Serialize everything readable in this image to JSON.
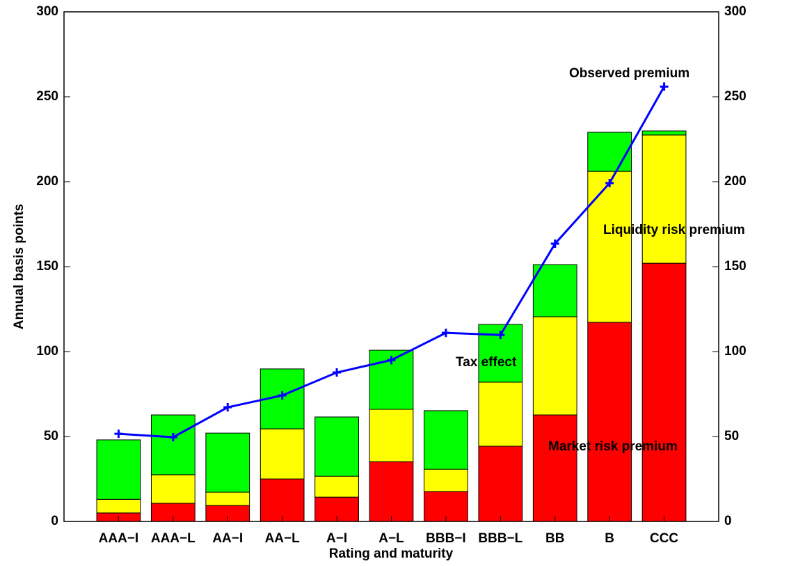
{
  "chart_data": {
    "type": "bar",
    "stacked": true,
    "xlabel": "Rating and maturity",
    "ylabel": "Annual basis points",
    "categories": [
      "AAA−I",
      "AAA−L",
      "AA−I",
      "AA−L",
      "A−I",
      "A−L",
      "BBB−I",
      "BBB−L",
      "BB",
      "B",
      "CCC"
    ],
    "series": [
      {
        "name": "Market risk premium",
        "type": "bar",
        "color": "#ff0000",
        "values": [
          5,
          10.7,
          9.4,
          25,
          14.3,
          35.2,
          17.6,
          44.3,
          62.7,
          117.2,
          152
        ]
      },
      {
        "name": "Liquidity risk premium",
        "type": "bar",
        "color": "#ffff00",
        "values": [
          8,
          16.8,
          7.8,
          29.5,
          12.3,
          30.8,
          13.1,
          37.7,
          57.8,
          88.9,
          75.5
        ]
      },
      {
        "name": "Tax effect",
        "type": "bar",
        "color": "#00ff00",
        "values": [
          35,
          35.2,
          34.8,
          35.3,
          34.9,
          34.8,
          34.5,
          34,
          30.7,
          23,
          2.4
        ]
      },
      {
        "name": "Observed premium",
        "type": "line",
        "color": "#0000ff",
        "values": [
          51.6,
          49.6,
          67.2,
          74.2,
          87.7,
          95,
          111,
          109.8,
          163.5,
          199.2,
          256
        ]
      }
    ],
    "ylim": [
      0,
      300
    ],
    "yticks": [
      0,
      50,
      100,
      150,
      200,
      250,
      300
    ],
    "y2lim": [
      0,
      300
    ],
    "y2ticks": [
      0,
      50,
      100,
      150,
      200,
      250,
      300
    ],
    "grid": false
  }
}
